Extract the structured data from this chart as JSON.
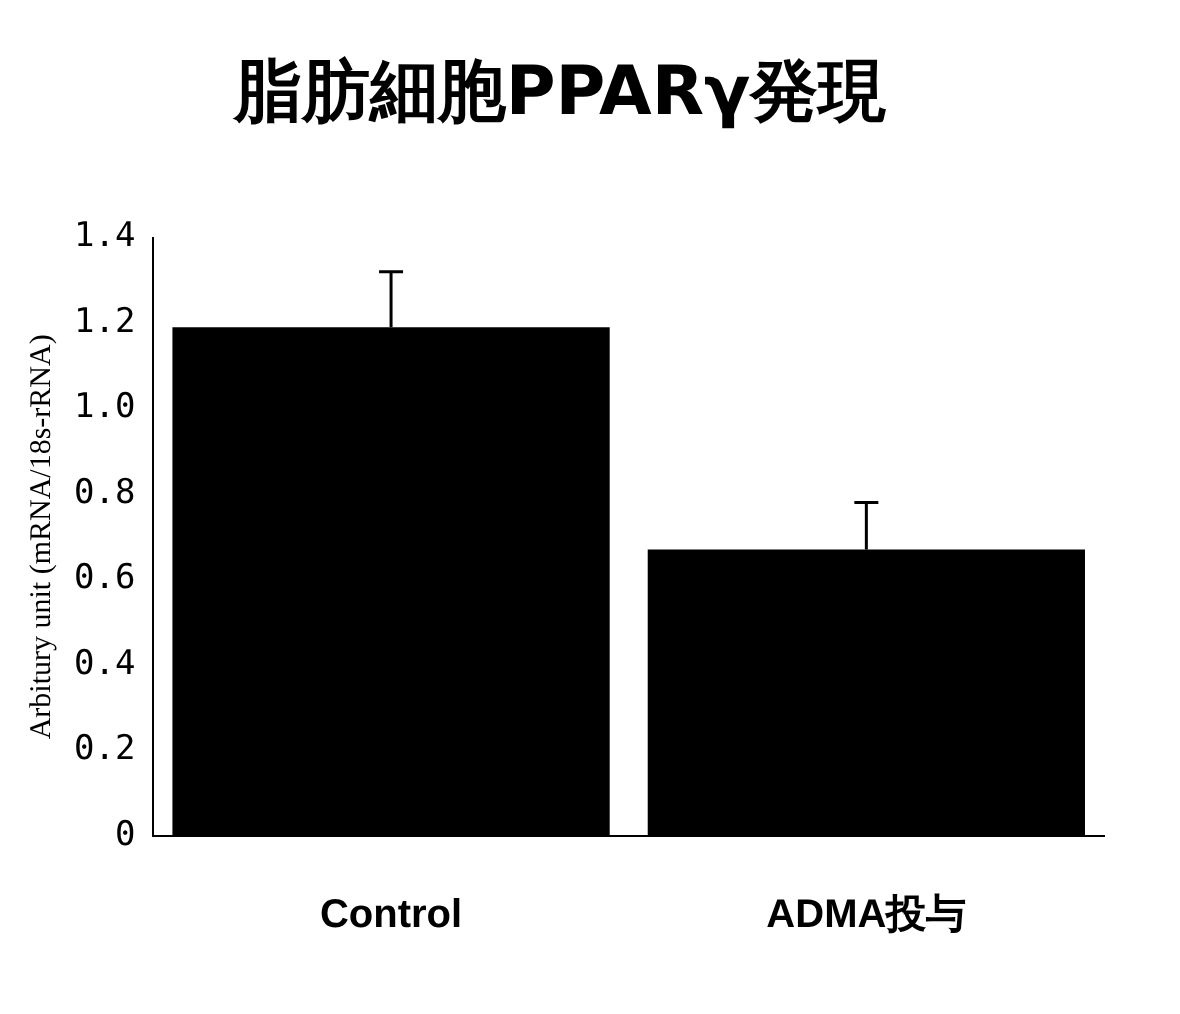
{
  "chart_data": {
    "type": "bar",
    "title": "脂肪細胞PPARγ発現",
    "ylabel": "Arbitury unit (mRNA/18s-rRNA)",
    "categories": [
      "Control",
      "ADMA投与"
    ],
    "values": [
      1.19,
      0.67
    ],
    "errors": [
      [
        1.19,
        1.32
      ],
      [
        0.67,
        0.78
      ]
    ],
    "color": "#000000",
    "ylim": [
      0,
      1.4
    ],
    "yticks": [
      0,
      {
        "value": 0.2,
        "label": "0.2"
      },
      {
        "value": 0.4,
        "label": "0.4"
      },
      {
        "value": 0.6,
        "label": "0.6"
      },
      {
        "value": 0.8,
        "label": "0.8"
      },
      {
        "value": 1,
        "label": "1.0"
      },
      {
        "value": 1.2,
        "label": "1.2"
      },
      {
        "value": 1.4,
        "label": "1.4"
      }
    ],
    "grid": false,
    "legend": false
  }
}
